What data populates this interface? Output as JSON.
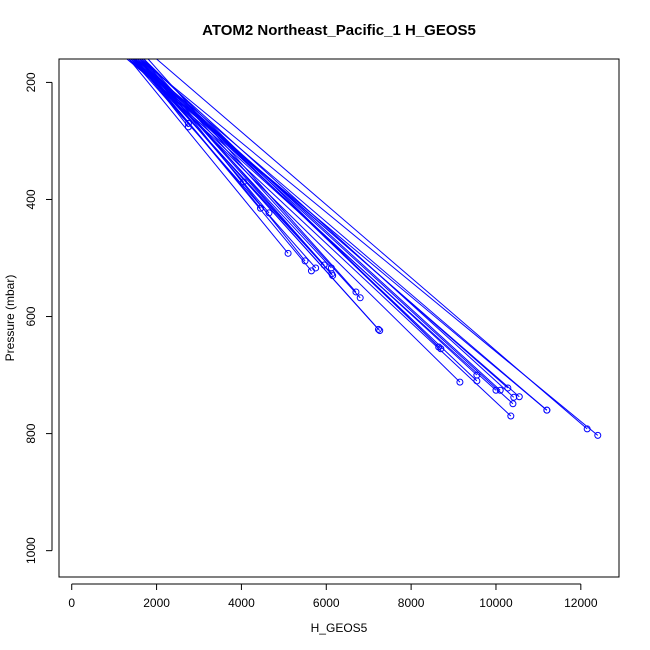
{
  "chart_data": {
    "type": "line",
    "title": "ATOM2 Northeast_Pacific_1 H_GEOS5",
    "xlabel": "H_GEOS5",
    "ylabel": "Pressure (mbar)",
    "xlim": [
      -300,
      12900
    ],
    "ylim": [
      1045,
      160
    ],
    "y_reversed": true,
    "x_ticks": [
      0,
      2000,
      4000,
      6000,
      8000,
      10000,
      12000
    ],
    "y_ticks": [
      200,
      400,
      600,
      800,
      1000
    ],
    "grid": false,
    "legend": "none",
    "colors": {
      "series": "#0000ff",
      "axis": "#000000"
    },
    "series": [
      {
        "points": [
          [
            1600,
            160
          ],
          [
            12400,
            803
          ]
        ]
      },
      {
        "points": [
          [
            2000,
            160
          ],
          [
            12150,
            792
          ]
        ]
      },
      {
        "points": [
          [
            1300,
            160
          ],
          [
            11200,
            760
          ]
        ]
      },
      {
        "points": [
          [
            1500,
            160
          ],
          [
            11200,
            760
          ]
        ]
      },
      {
        "points": [
          [
            1400,
            160
          ],
          [
            10550,
            737
          ]
        ]
      },
      {
        "points": [
          [
            1650,
            160
          ],
          [
            10420,
            738
          ]
        ]
      },
      {
        "points": [
          [
            1450,
            160
          ],
          [
            10280,
            722
          ]
        ]
      },
      {
        "points": [
          [
            1550,
            160
          ],
          [
            10100,
            726
          ]
        ]
      },
      {
        "points": [
          [
            1350,
            160
          ],
          [
            10000,
            726
          ]
        ]
      },
      {
        "points": [
          [
            1500,
            160
          ],
          [
            10400,
            749
          ]
        ]
      },
      {
        "points": [
          [
            1350,
            160
          ],
          [
            10350,
            770
          ]
        ]
      },
      {
        "points": [
          [
            1450,
            160
          ],
          [
            9550,
            700
          ]
        ]
      },
      {
        "points": [
          [
            1550,
            160
          ],
          [
            9550,
            710
          ]
        ]
      },
      {
        "points": [
          [
            1400,
            160
          ],
          [
            9150,
            712
          ]
        ]
      },
      {
        "points": [
          [
            1700,
            160
          ],
          [
            8650,
            652
          ]
        ]
      },
      {
        "points": [
          [
            1600,
            160
          ],
          [
            8700,
            655
          ]
        ]
      },
      {
        "points": [
          [
            1500,
            160
          ],
          [
            7230,
            622
          ]
        ]
      },
      {
        "points": [
          [
            1500,
            160
          ],
          [
            7260,
            624
          ]
        ]
      },
      {
        "points": [
          [
            1700,
            160
          ],
          [
            6800,
            568
          ]
        ]
      },
      {
        "points": [
          [
            1800,
            160
          ],
          [
            6700,
            558
          ]
        ]
      },
      {
        "points": [
          [
            1600,
            160
          ],
          [
            6150,
            530
          ]
        ]
      },
      {
        "points": [
          [
            1450,
            160
          ],
          [
            6130,
            527
          ]
        ]
      },
      {
        "points": [
          [
            1550,
            160
          ],
          [
            6120,
            517
          ]
        ]
      },
      {
        "points": [
          [
            1650,
            160
          ],
          [
            5950,
            512
          ]
        ]
      },
      {
        "points": [
          [
            1400,
            160
          ],
          [
            5750,
            517
          ]
        ]
      },
      {
        "points": [
          [
            1500,
            160
          ],
          [
            5650,
            522
          ]
        ]
      },
      {
        "points": [
          [
            1700,
            160
          ],
          [
            5500,
            505
          ]
        ]
      },
      {
        "points": [
          [
            1350,
            160
          ],
          [
            5100,
            492
          ]
        ]
      },
      {
        "points": [
          [
            1600,
            160
          ],
          [
            4650,
            423
          ]
        ]
      },
      {
        "points": [
          [
            1500,
            160
          ],
          [
            4450,
            415
          ]
        ]
      },
      {
        "points": [
          [
            1550,
            160
          ],
          [
            4050,
            370
          ]
        ]
      },
      {
        "points": [
          [
            1450,
            160
          ],
          [
            2750,
            270
          ]
        ]
      },
      {
        "points": [
          [
            1500,
            160
          ],
          [
            2750,
            276
          ]
        ]
      }
    ]
  }
}
